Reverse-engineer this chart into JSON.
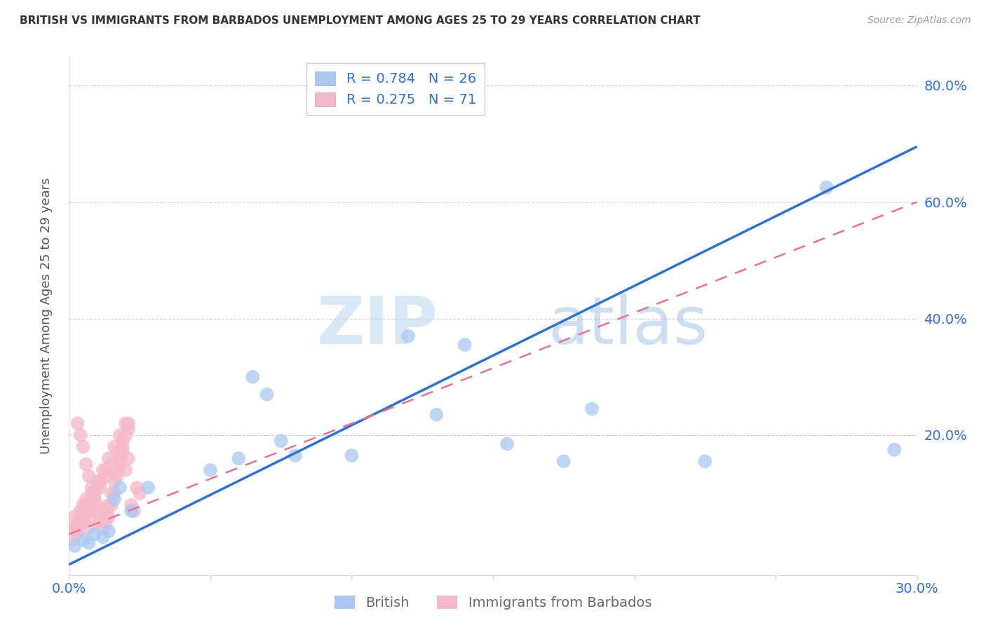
{
  "title": "BRITISH VS IMMIGRANTS FROM BARBADOS UNEMPLOYMENT AMONG AGES 25 TO 29 YEARS CORRELATION CHART",
  "source": "Source: ZipAtlas.com",
  "ylabel_label": "Unemployment Among Ages 25 to 29 years",
  "watermark_zip": "ZIP",
  "watermark_atlas": "atlas",
  "xlim": [
    0.0,
    0.3
  ],
  "ylim": [
    -0.04,
    0.85
  ],
  "british_R": 0.784,
  "british_N": 26,
  "barbados_R": 0.275,
  "barbados_N": 71,
  "british_color": "#a8c8f0",
  "barbados_color": "#f5b8c8",
  "british_line_color": "#3070d0",
  "barbados_line_color": "#e87090",
  "british_line_x0": 0.0,
  "british_line_y0": -0.022,
  "british_line_x1": 0.3,
  "british_line_y1": 0.695,
  "barbados_line_x0": 0.0,
  "barbados_line_y0": 0.03,
  "barbados_line_x1": 0.3,
  "barbados_line_y1": 0.6,
  "legend_label_british": "British",
  "legend_label_barbados": "Immigrants from Barbados",
  "british_x": [
    0.002,
    0.005,
    0.007,
    0.009,
    0.012,
    0.014,
    0.016,
    0.018,
    0.022,
    0.028,
    0.05,
    0.06,
    0.065,
    0.07,
    0.075,
    0.08,
    0.1,
    0.12,
    0.13,
    0.14,
    0.155,
    0.175,
    0.185,
    0.225,
    0.268,
    0.292
  ],
  "british_y": [
    0.01,
    0.02,
    0.015,
    0.03,
    0.025,
    0.035,
    0.09,
    0.11,
    0.07,
    0.11,
    0.14,
    0.16,
    0.3,
    0.27,
    0.19,
    0.165,
    0.165,
    0.37,
    0.235,
    0.355,
    0.185,
    0.155,
    0.245,
    0.155,
    0.625,
    0.175
  ],
  "barbados_x": [
    0.001,
    0.002,
    0.003,
    0.004,
    0.005,
    0.006,
    0.007,
    0.008,
    0.009,
    0.01,
    0.011,
    0.012,
    0.013,
    0.014,
    0.015,
    0.016,
    0.017,
    0.018,
    0.019,
    0.02,
    0.021,
    0.022,
    0.023,
    0.024,
    0.025,
    0.003,
    0.004,
    0.005,
    0.006,
    0.007,
    0.008,
    0.009,
    0.01,
    0.011,
    0.012,
    0.013,
    0.014,
    0.015,
    0.016,
    0.017,
    0.018,
    0.019,
    0.02,
    0.021,
    0.003,
    0.005,
    0.007,
    0.009,
    0.011,
    0.013,
    0.015,
    0.017,
    0.019,
    0.021,
    0.002,
    0.004,
    0.006,
    0.008,
    0.01,
    0.012,
    0.014,
    0.016,
    0.018,
    0.02,
    0.001,
    0.003,
    0.005,
    0.007,
    0.009,
    0.011,
    0.013
  ],
  "barbados_y": [
    0.04,
    0.06,
    0.05,
    0.07,
    0.08,
    0.09,
    0.04,
    0.06,
    0.1,
    0.08,
    0.12,
    0.07,
    0.05,
    0.06,
    0.08,
    0.1,
    0.13,
    0.15,
    0.17,
    0.14,
    0.16,
    0.08,
    0.07,
    0.11,
    0.1,
    0.22,
    0.2,
    0.18,
    0.15,
    0.13,
    0.11,
    0.09,
    0.07,
    0.05,
    0.04,
    0.06,
    0.08,
    0.1,
    0.12,
    0.14,
    0.16,
    0.18,
    0.2,
    0.22,
    0.03,
    0.05,
    0.07,
    0.09,
    0.11,
    0.13,
    0.15,
    0.17,
    0.19,
    0.21,
    0.04,
    0.06,
    0.08,
    0.1,
    0.12,
    0.14,
    0.16,
    0.18,
    0.2,
    0.22,
    0.02,
    0.04,
    0.06,
    0.08,
    0.1,
    0.12,
    0.14
  ]
}
